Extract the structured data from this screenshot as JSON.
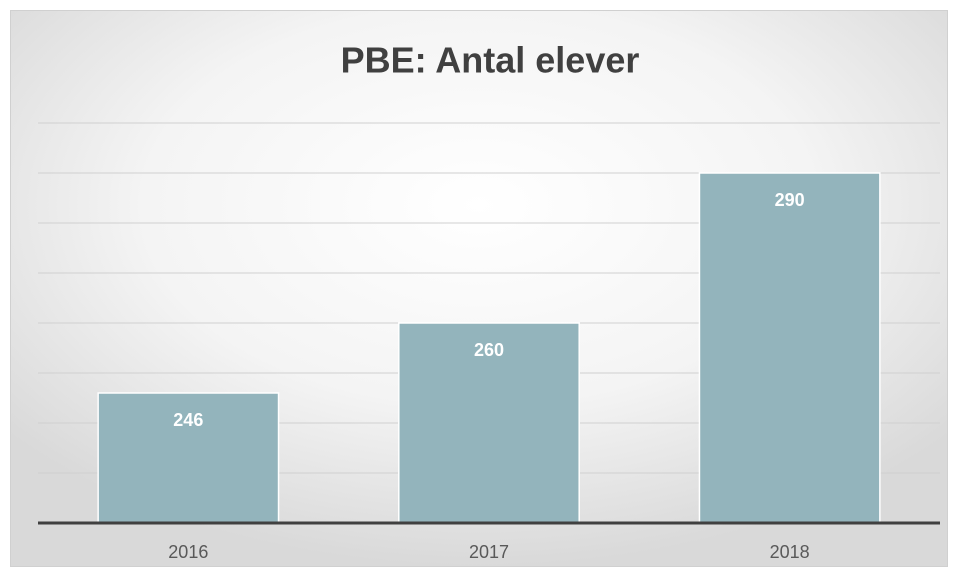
{
  "chart_data": {
    "type": "bar",
    "title": "PBE: Antal elever",
    "categories": [
      "2016",
      "2017",
      "2018"
    ],
    "values": [
      246,
      260,
      290
    ],
    "color": "#93b4bc",
    "ylim": [
      220,
      300
    ],
    "yticks": [
      230,
      240,
      250,
      260,
      270,
      280,
      290,
      300
    ],
    "grid": true
  }
}
